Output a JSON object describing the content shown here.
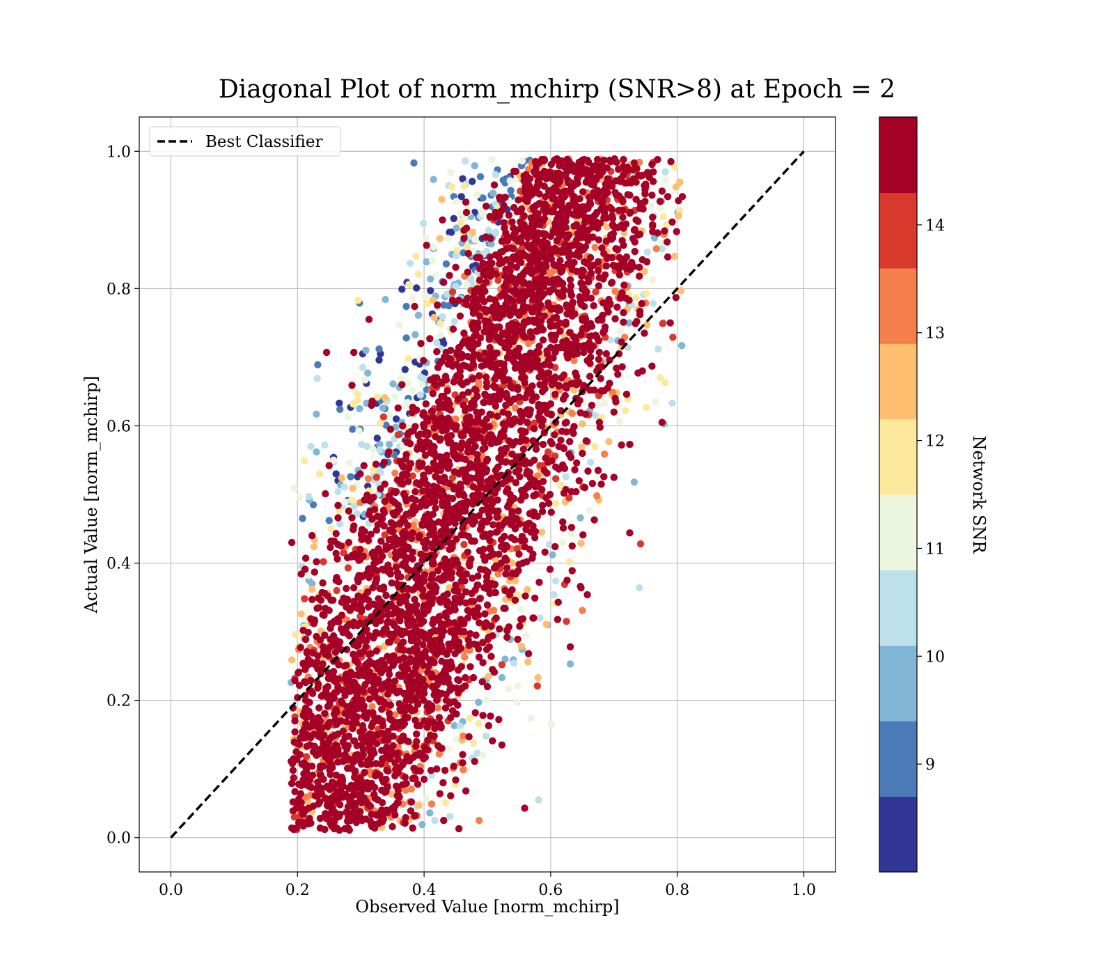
{
  "chart_data": {
    "type": "scatter",
    "title": "Diagonal Plot of norm_mchirp (SNR>8) at Epoch = 2",
    "xlabel": "Observed Value [norm_mchirp]",
    "ylabel": "Actual Value [norm_mchirp]",
    "xlim": [
      -0.05,
      1.05
    ],
    "ylim": [
      -0.05,
      1.05
    ],
    "xticks": [
      "0.0",
      "0.2",
      "0.4",
      "0.6",
      "0.8",
      "1.0"
    ],
    "yticks": [
      "0.0",
      "0.2",
      "0.4",
      "0.6",
      "0.8",
      "1.0"
    ],
    "xtick_values": [
      0.0,
      0.2,
      0.4,
      0.6,
      0.8,
      1.0
    ],
    "ytick_values": [
      0.0,
      0.2,
      0.4,
      0.6,
      0.8,
      1.0
    ],
    "grid": true,
    "legend": {
      "placement": "top-left",
      "entries": [
        {
          "label": "Best Classifier",
          "style": "dashed",
          "color": "#000000"
        }
      ]
    },
    "reference_line": {
      "name": "Best Classifier",
      "x": [
        0.0,
        1.0
      ],
      "y": [
        0.0,
        1.0
      ]
    },
    "colorbar": {
      "label": "Network SNR",
      "range": [
        8.0,
        15.0
      ],
      "ticks": [
        "9",
        "10",
        "11",
        "12",
        "13",
        "14"
      ],
      "tick_values": [
        9,
        10,
        11,
        12,
        13,
        14
      ],
      "bins": [
        {
          "from": 8.0,
          "to": 8.7,
          "color": "#313695"
        },
        {
          "from": 8.7,
          "to": 9.4,
          "color": "#4a7ab8"
        },
        {
          "from": 9.4,
          "to": 10.1,
          "color": "#82b6d6"
        },
        {
          "from": 10.1,
          "to": 10.8,
          "color": "#bee0eb"
        },
        {
          "from": 10.8,
          "to": 11.5,
          "color": "#ecf6de"
        },
        {
          "from": 11.5,
          "to": 12.2,
          "color": "#fde99b"
        },
        {
          "from": 12.2,
          "to": 12.9,
          "color": "#fdbe70"
        },
        {
          "from": 12.9,
          "to": 13.6,
          "color": "#f47e4c"
        },
        {
          "from": 13.6,
          "to": 14.3,
          "color": "#d9392c"
        },
        {
          "from": 14.3,
          "to": 15.0,
          "color": "#a50026"
        }
      ]
    },
    "point_clusters": [
      {
        "region": "dense core",
        "x": [
          0.35,
          0.7
        ],
        "y": [
          0.05,
          0.95
        ],
        "dominant_snr": "14-15"
      },
      {
        "region": "upper-left edge",
        "x": [
          0.25,
          0.5
        ],
        "y": [
          0.5,
          1.0
        ],
        "dominant_snr": "8-12"
      }
    ],
    "points": []
  }
}
